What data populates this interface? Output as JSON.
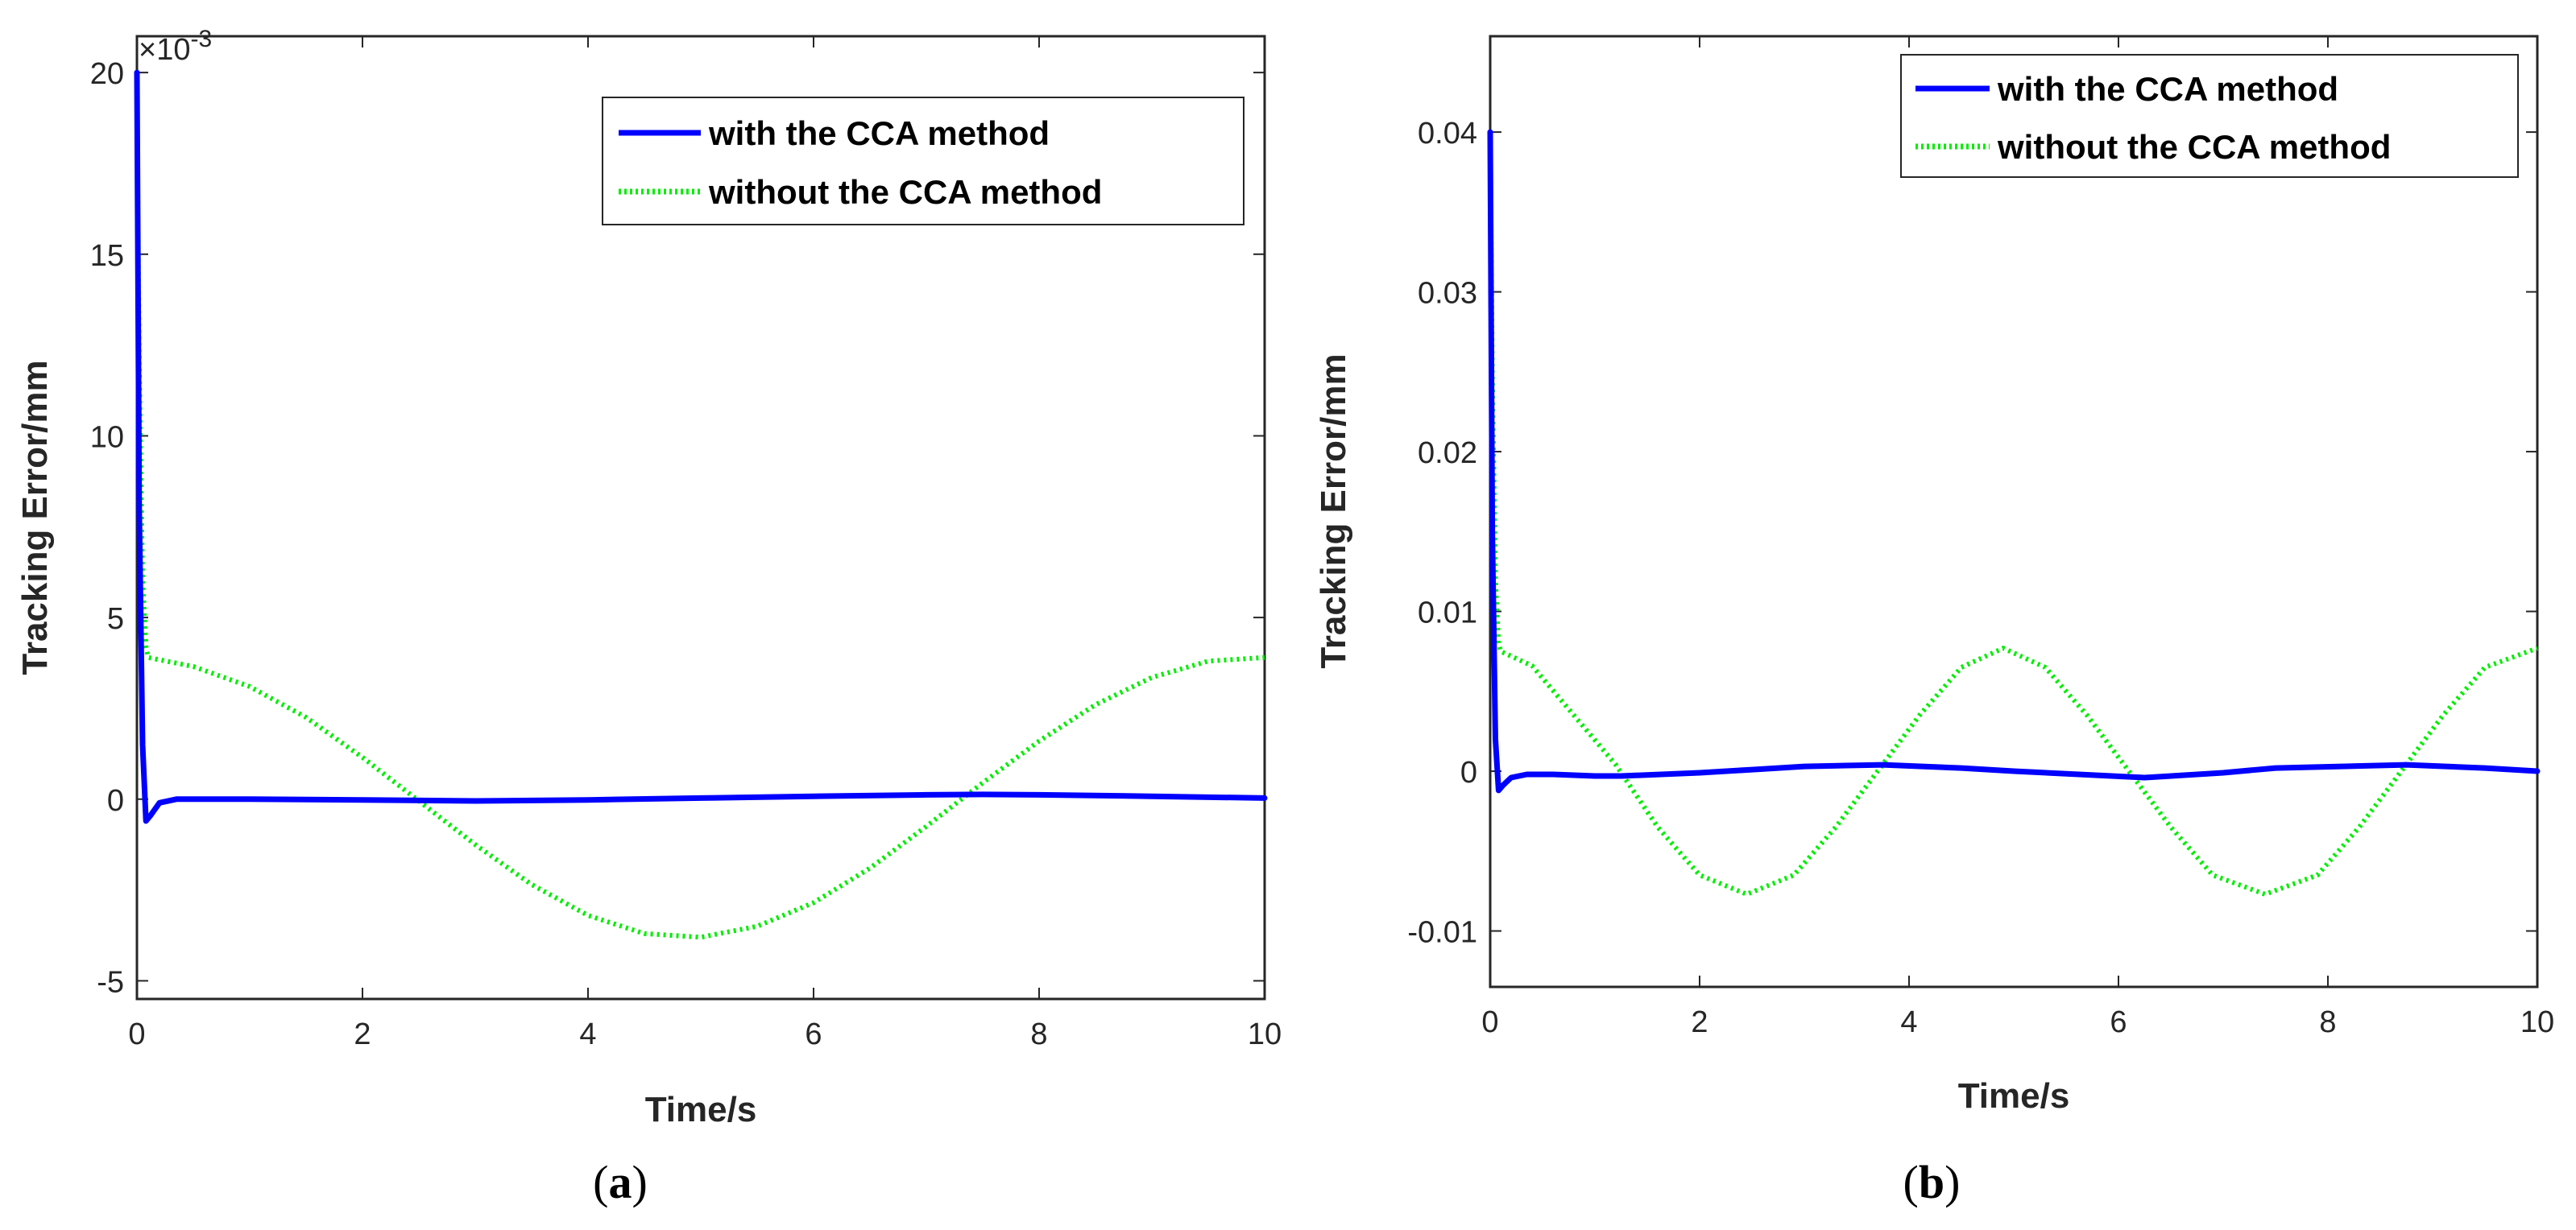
{
  "colors": {
    "with": "#0000ff",
    "without": "#00ee00",
    "axis": "#262626"
  },
  "chart_data": [
    {
      "id": "a",
      "type": "line",
      "caption_open": "(",
      "caption_letter": "a",
      "caption_close": ")",
      "xlabel": "Time/s",
      "ylabel": "Tracking Error/mm",
      "xlim": [
        0,
        10
      ],
      "ylim": [
        -5.5,
        21
      ],
      "xticks": [
        0,
        2,
        4,
        6,
        8,
        10
      ],
      "xtick_labels": [
        "0",
        "2",
        "4",
        "6",
        "8",
        "10"
      ],
      "yticks": [
        -5,
        0,
        5,
        10,
        15,
        20
      ],
      "ytick_labels": [
        "-5",
        "0",
        "5",
        "10",
        "15",
        "20"
      ],
      "exponent_base": "×10",
      "exponent_power": "-3",
      "legend_position": "top-right",
      "series": [
        {
          "name": "with the CCA method",
          "color": "#0000ff",
          "style": "solid",
          "x": [
            0,
            0.02,
            0.05,
            0.08,
            0.12,
            0.2,
            0.35,
            0.6,
            1.0,
            2.0,
            3.0,
            4.0,
            5.0,
            6.0,
            7.0,
            7.5,
            8.0,
            9.0,
            10.0
          ],
          "y": [
            20,
            8,
            1.5,
            -0.6,
            -0.45,
            -0.1,
            0.0,
            0.0,
            0.0,
            -0.02,
            -0.05,
            -0.02,
            0.03,
            0.08,
            0.12,
            0.13,
            0.12,
            0.08,
            0.03
          ]
        },
        {
          "name": "without the CCA method",
          "color": "#00ee00",
          "style": "dotted",
          "x": [
            0,
            0.02,
            0.05,
            0.08,
            0.1,
            0.5,
            1.0,
            1.5,
            2.0,
            2.5,
            3.0,
            3.5,
            4.0,
            4.5,
            5.0,
            5.5,
            6.0,
            6.5,
            7.0,
            7.5,
            8.0,
            8.5,
            9.0,
            9.5,
            10.0
          ],
          "y": [
            20,
            12,
            6,
            4.2,
            3.9,
            3.65,
            3.1,
            2.25,
            1.15,
            -0.05,
            -1.25,
            -2.35,
            -3.2,
            -3.7,
            -3.8,
            -3.5,
            -2.85,
            -1.9,
            -0.75,
            0.45,
            1.6,
            2.6,
            3.35,
            3.8,
            3.9
          ]
        }
      ]
    },
    {
      "id": "b",
      "type": "line",
      "caption_open": "(",
      "caption_letter": "b",
      "caption_close": ")",
      "xlabel": "Time/s",
      "ylabel": "Tracking Error/mm",
      "xlim": [
        0,
        10
      ],
      "ylim": [
        -0.0135,
        0.046
      ],
      "xticks": [
        0,
        2,
        4,
        6,
        8,
        10
      ],
      "xtick_labels": [
        "0",
        "2",
        "4",
        "6",
        "8",
        "10"
      ],
      "yticks": [
        -0.01,
        0,
        0.01,
        0.02,
        0.03,
        0.04
      ],
      "ytick_labels": [
        "-0.01",
        "0",
        "0.01",
        "0.02",
        "0.03",
        "0.04"
      ],
      "legend_position": "top-right",
      "series": [
        {
          "name": "with the CCA method",
          "color": "#0000ff",
          "style": "solid",
          "x": [
            0,
            0.02,
            0.05,
            0.08,
            0.12,
            0.2,
            0.35,
            0.6,
            1.0,
            1.25,
            2.0,
            2.5,
            3.0,
            3.75,
            4.5,
            5.0,
            6.25,
            7.0,
            7.5,
            8.75,
            9.5,
            10.0
          ],
          "y": [
            0.04,
            0.015,
            0.002,
            -0.0012,
            -0.0009,
            -0.0004,
            -0.0002,
            -0.0002,
            -0.0003,
            -0.0003,
            -0.0001,
            0.0001,
            0.0003,
            0.0004,
            0.0002,
            0.0,
            -0.0004,
            -0.0001,
            0.0002,
            0.0004,
            0.0002,
            0.0
          ]
        },
        {
          "name": "without the CCA method",
          "color": "#00ee00",
          "style": "dotted",
          "x": [
            0,
            0.02,
            0.05,
            0.08,
            0.1,
            0.4,
            0.8,
            1.2,
            1.6,
            2.0,
            2.45,
            2.9,
            3.3,
            3.7,
            4.1,
            4.5,
            4.9,
            5.3,
            5.7,
            6.1,
            6.5,
            6.9,
            7.4,
            7.9,
            8.3,
            8.7,
            9.1,
            9.5,
            10.0
          ],
          "y": [
            0.04,
            0.025,
            0.012,
            0.008,
            0.0075,
            0.0066,
            0.0035,
            0.0004,
            -0.0035,
            -0.0065,
            -0.0077,
            -0.0065,
            -0.0035,
            0.0,
            0.0035,
            0.0065,
            0.0077,
            0.0065,
            0.0035,
            0.0,
            -0.0035,
            -0.0065,
            -0.0077,
            -0.0065,
            -0.0035,
            0.0,
            0.0035,
            0.0065,
            0.0077
          ]
        }
      ]
    }
  ]
}
